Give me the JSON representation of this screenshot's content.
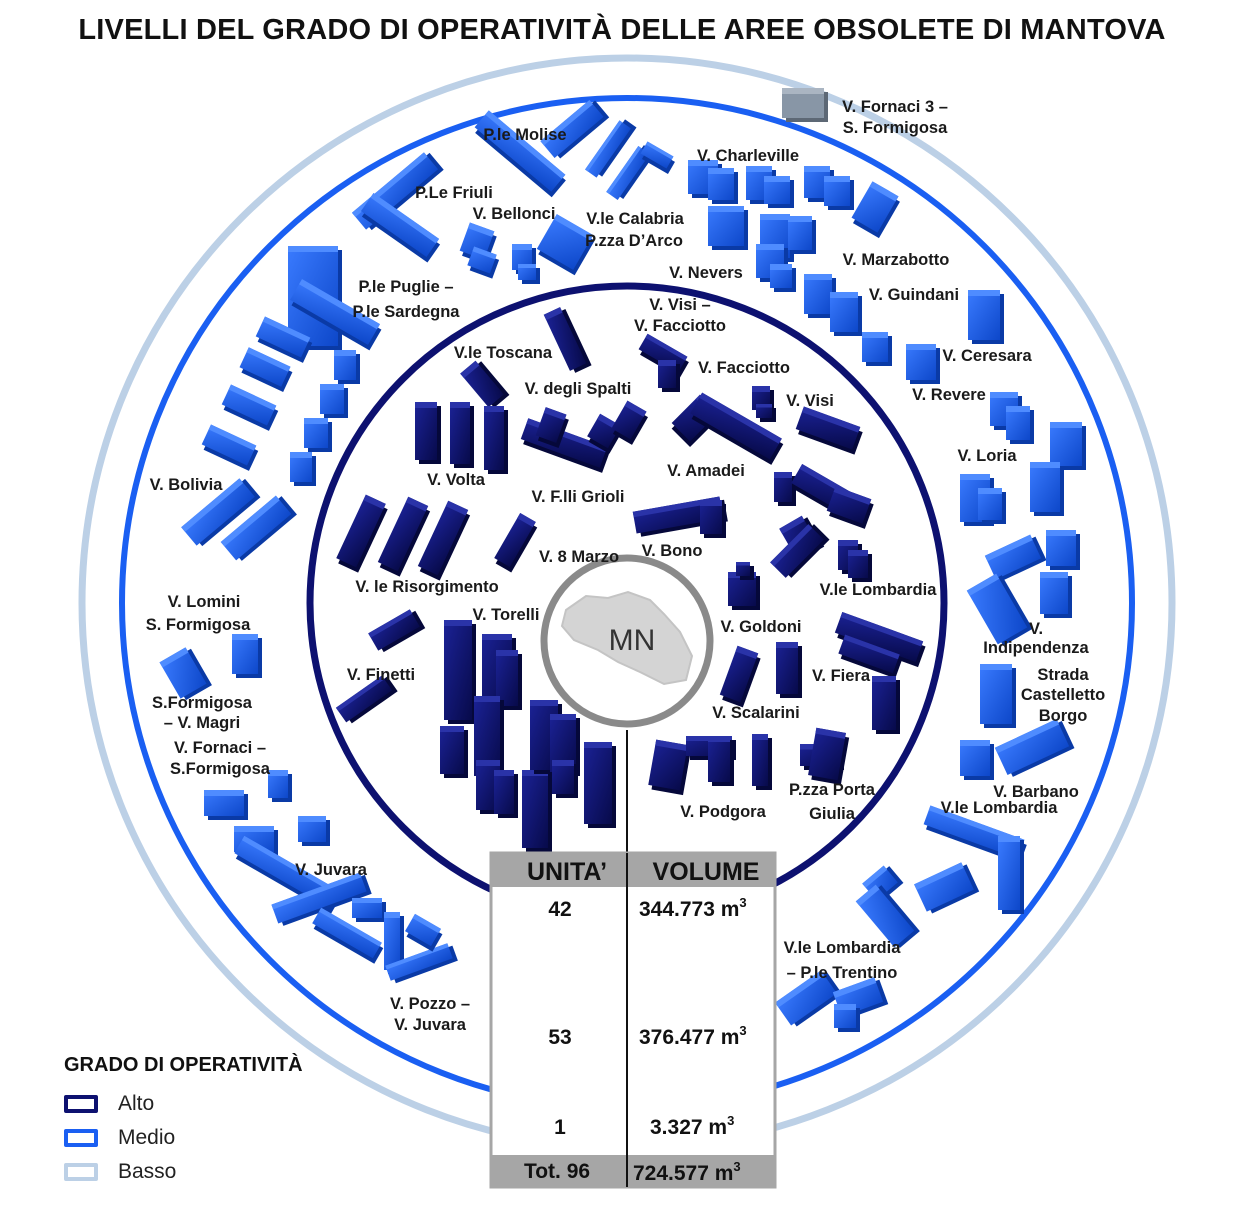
{
  "title": "LIVELLI DEL GRADO DI OPERATIVITÀ DELLE AREE OBSOLETE DI MANTOVA",
  "center_label": "MN",
  "colors": {
    "alto": "#0d1170",
    "medio": "#1a5ff2",
    "basso": "#bcd0e6",
    "gray": "#8a8a8a",
    "building_gray": "#7f8c9a"
  },
  "table": {
    "headers": [
      "UNITA’",
      "VOLUME"
    ],
    "rows": [
      {
        "units": "42",
        "volume": "344.773 m",
        "exp": "3"
      },
      {
        "units": "53",
        "volume": "376.477 m",
        "exp": "3"
      },
      {
        "units": "1",
        "volume": "3.327 m",
        "exp": "3"
      }
    ],
    "total": {
      "units": "Tot. 96",
      "volume": "724.577 m",
      "exp": "3"
    }
  },
  "legend": {
    "title": "GRADO DI OPERATIVITÀ",
    "items": [
      {
        "label": "Alto",
        "color": "#0d1170"
      },
      {
        "label": "Medio",
        "color": "#1a5ff2"
      },
      {
        "label": "Basso",
        "color": "#bcd0e6"
      }
    ]
  },
  "areas": [
    {
      "level": "basso",
      "text": "V. Fornaci 3 –"
    },
    {
      "level": "basso",
      "text": "S. Formigosa"
    },
    {
      "level": "medio",
      "text": "P.le Molise"
    },
    {
      "level": "medio",
      "text": "V. Charleville"
    },
    {
      "level": "medio",
      "text": "P.Le Friuli"
    },
    {
      "level": "medio",
      "text": "V. Bellonci"
    },
    {
      "level": "medio",
      "text": "V.le Calabria"
    },
    {
      "level": "medio",
      "text": "P.zza D’Arco"
    },
    {
      "level": "medio",
      "text": "V. Nevers"
    },
    {
      "level": "medio",
      "text": "V. Marzabotto"
    },
    {
      "level": "medio",
      "text": "P.le Puglie –"
    },
    {
      "level": "medio",
      "text": "P.le Sardegna"
    },
    {
      "level": "medio",
      "text": "V. Guindani"
    },
    {
      "level": "alto",
      "text": "V. Visi –"
    },
    {
      "level": "alto",
      "text": "V. Facciotto"
    },
    {
      "level": "medio",
      "text": "V. Ceresara"
    },
    {
      "level": "alto",
      "text": "V.le Toscana"
    },
    {
      "level": "alto",
      "text": "V. Facciotto"
    },
    {
      "level": "medio",
      "text": "V. Revere"
    },
    {
      "level": "alto",
      "text": "V. degli Spalti"
    },
    {
      "level": "alto",
      "text": "V. Visi"
    },
    {
      "level": "medio",
      "text": "V. Loria"
    },
    {
      "level": "alto",
      "text": "V. Amadei"
    },
    {
      "level": "alto",
      "text": "V. Volta"
    },
    {
      "level": "medio",
      "text": "V. Bolivia"
    },
    {
      "level": "alto",
      "text": "V. F.lli Grioli"
    },
    {
      "level": "alto",
      "text": "V. Bono"
    },
    {
      "level": "alto",
      "text": "V. 8 Marzo"
    },
    {
      "level": "alto",
      "text": "V.le Lombardia"
    },
    {
      "level": "alto",
      "text": "V. le Risorgimento"
    },
    {
      "level": "medio",
      "text": "V. Lomini"
    },
    {
      "level": "alto",
      "text": "V. Torelli"
    },
    {
      "level": "medio",
      "text": "S. Formigosa"
    },
    {
      "level": "alto",
      "text": "V. Goldoni"
    },
    {
      "level": "medio",
      "text": "V."
    },
    {
      "level": "medio",
      "text": "Indipendenza"
    },
    {
      "level": "medio",
      "text": "Strada"
    },
    {
      "level": "alto",
      "text": "V. Finetti"
    },
    {
      "level": "alto",
      "text": "V. Fiera"
    },
    {
      "level": "medio",
      "text": "Castelletto"
    },
    {
      "level": "medio",
      "text": "S.Formigosa"
    },
    {
      "level": "medio",
      "text": "Borgo"
    },
    {
      "level": "alto",
      "text": "V. Scalarini"
    },
    {
      "level": "medio",
      "text": "– V. Magri"
    },
    {
      "level": "medio",
      "text": "V. Fornaci –"
    },
    {
      "level": "medio",
      "text": "S.Formigosa"
    },
    {
      "level": "alto",
      "text": "P.zza Porta"
    },
    {
      "level": "medio",
      "text": "V. Barbano"
    },
    {
      "level": "medio",
      "text": "V.le Lombardia"
    },
    {
      "level": "alto",
      "text": "V. Podgora"
    },
    {
      "level": "alto",
      "text": "Giulia"
    },
    {
      "level": "medio",
      "text": "V. Juvara"
    },
    {
      "level": "medio",
      "text": "V.le Lombardia"
    },
    {
      "level": "medio",
      "text": "–  P.le Trentino"
    },
    {
      "level": "medio",
      "text": "V. Pozzo –"
    },
    {
      "level": "medio",
      "text": "V. Juvara"
    }
  ]
}
